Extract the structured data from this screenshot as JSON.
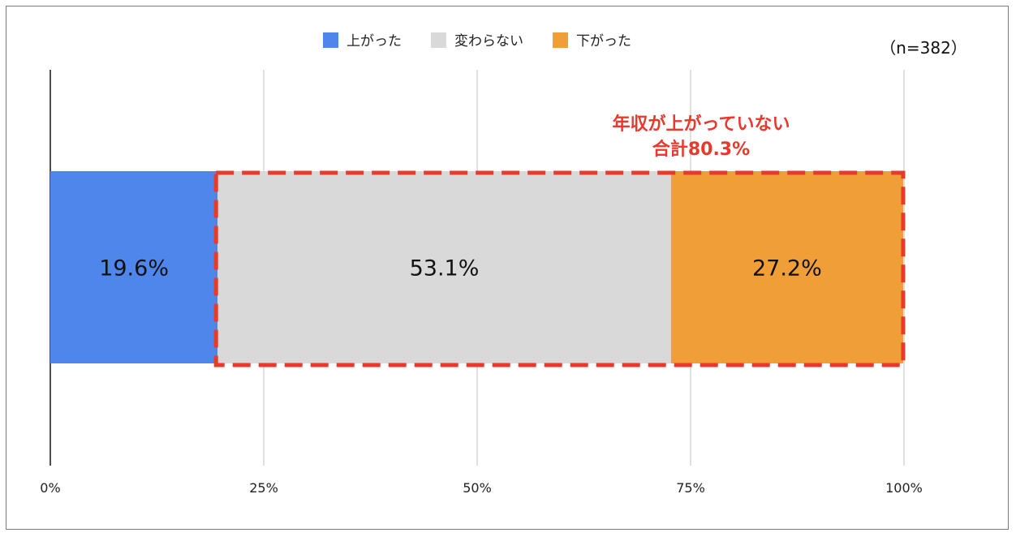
{
  "chart_data": {
    "type": "bar",
    "orientation": "horizontal",
    "stacked": true,
    "categories": [
      ""
    ],
    "series": [
      {
        "name": "上がった",
        "values": [
          19.6
        ],
        "label": "19.6%",
        "color": "#4f86ec"
      },
      {
        "name": "変わらない",
        "values": [
          53.1
        ],
        "label": "53.1%",
        "color": "#d9d9d9"
      },
      {
        "name": "下がった",
        "values": [
          27.2
        ],
        "label": "27.2%",
        "color": "#f09e38"
      }
    ],
    "xlim": [
      0,
      100
    ],
    "xticks": [
      0,
      25,
      50,
      75,
      100
    ],
    "xtick_labels": [
      "0%",
      "25%",
      "50%",
      "75%",
      "100%"
    ],
    "grid": true,
    "legend_position": "top",
    "note": "（n=382）",
    "annotation": {
      "line1": "年収が上がっていない",
      "line2": "合計80.3%",
      "color": "#e8392d",
      "covers_series": [
        "変わらない",
        "下がった"
      ]
    }
  }
}
